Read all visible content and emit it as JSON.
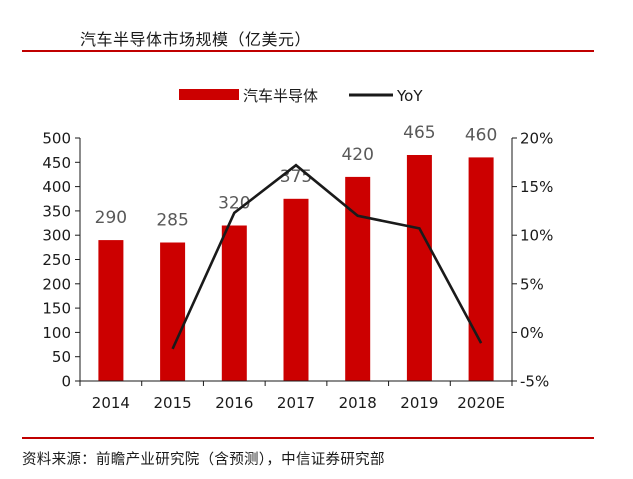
{
  "header": {
    "title": "汽车半导体市场规模（亿美元）"
  },
  "footer": {
    "source": "资料来源：前瞻产业研究院（含预测），中信证券研究部"
  },
  "colors": {
    "bar": "#cc0000",
    "line": "#1a1a1a",
    "rule": "#c00000",
    "axis": "#1a1a1a",
    "data_label": "#595959"
  },
  "chart_data": {
    "type": "bar",
    "title": "汽车半导体市场规模（亿美元）",
    "categories": [
      "2014",
      "2015",
      "2016",
      "2017",
      "2018",
      "2019",
      "2020E"
    ],
    "series": [
      {
        "name": "汽车半导体",
        "type": "bar",
        "axis": "left",
        "values": [
          290,
          285,
          320,
          375,
          420,
          465,
          460
        ],
        "data_labels": [
          "290",
          "285",
          "320",
          "375",
          "420",
          "465",
          "460"
        ]
      },
      {
        "name": "YoY",
        "type": "line",
        "axis": "right",
        "values": [
          null,
          -1.7,
          12.3,
          17.2,
          12.0,
          10.7,
          -1.1
        ]
      }
    ],
    "y_left": {
      "min": 0,
      "max": 500,
      "ticks": [
        0,
        50,
        100,
        150,
        200,
        250,
        300,
        350,
        400,
        450,
        500
      ],
      "tick_labels": [
        "0",
        "50",
        "100",
        "150",
        "200",
        "250",
        "300",
        "350",
        "400",
        "450",
        "500"
      ]
    },
    "y_right": {
      "min": -5,
      "max": 20,
      "ticks": [
        -5,
        0,
        5,
        10,
        15,
        20
      ],
      "tick_labels": [
        "-5%",
        "0%",
        "5%",
        "10%",
        "15%",
        "20%"
      ]
    },
    "legend_position": "top-center",
    "grid": false
  }
}
